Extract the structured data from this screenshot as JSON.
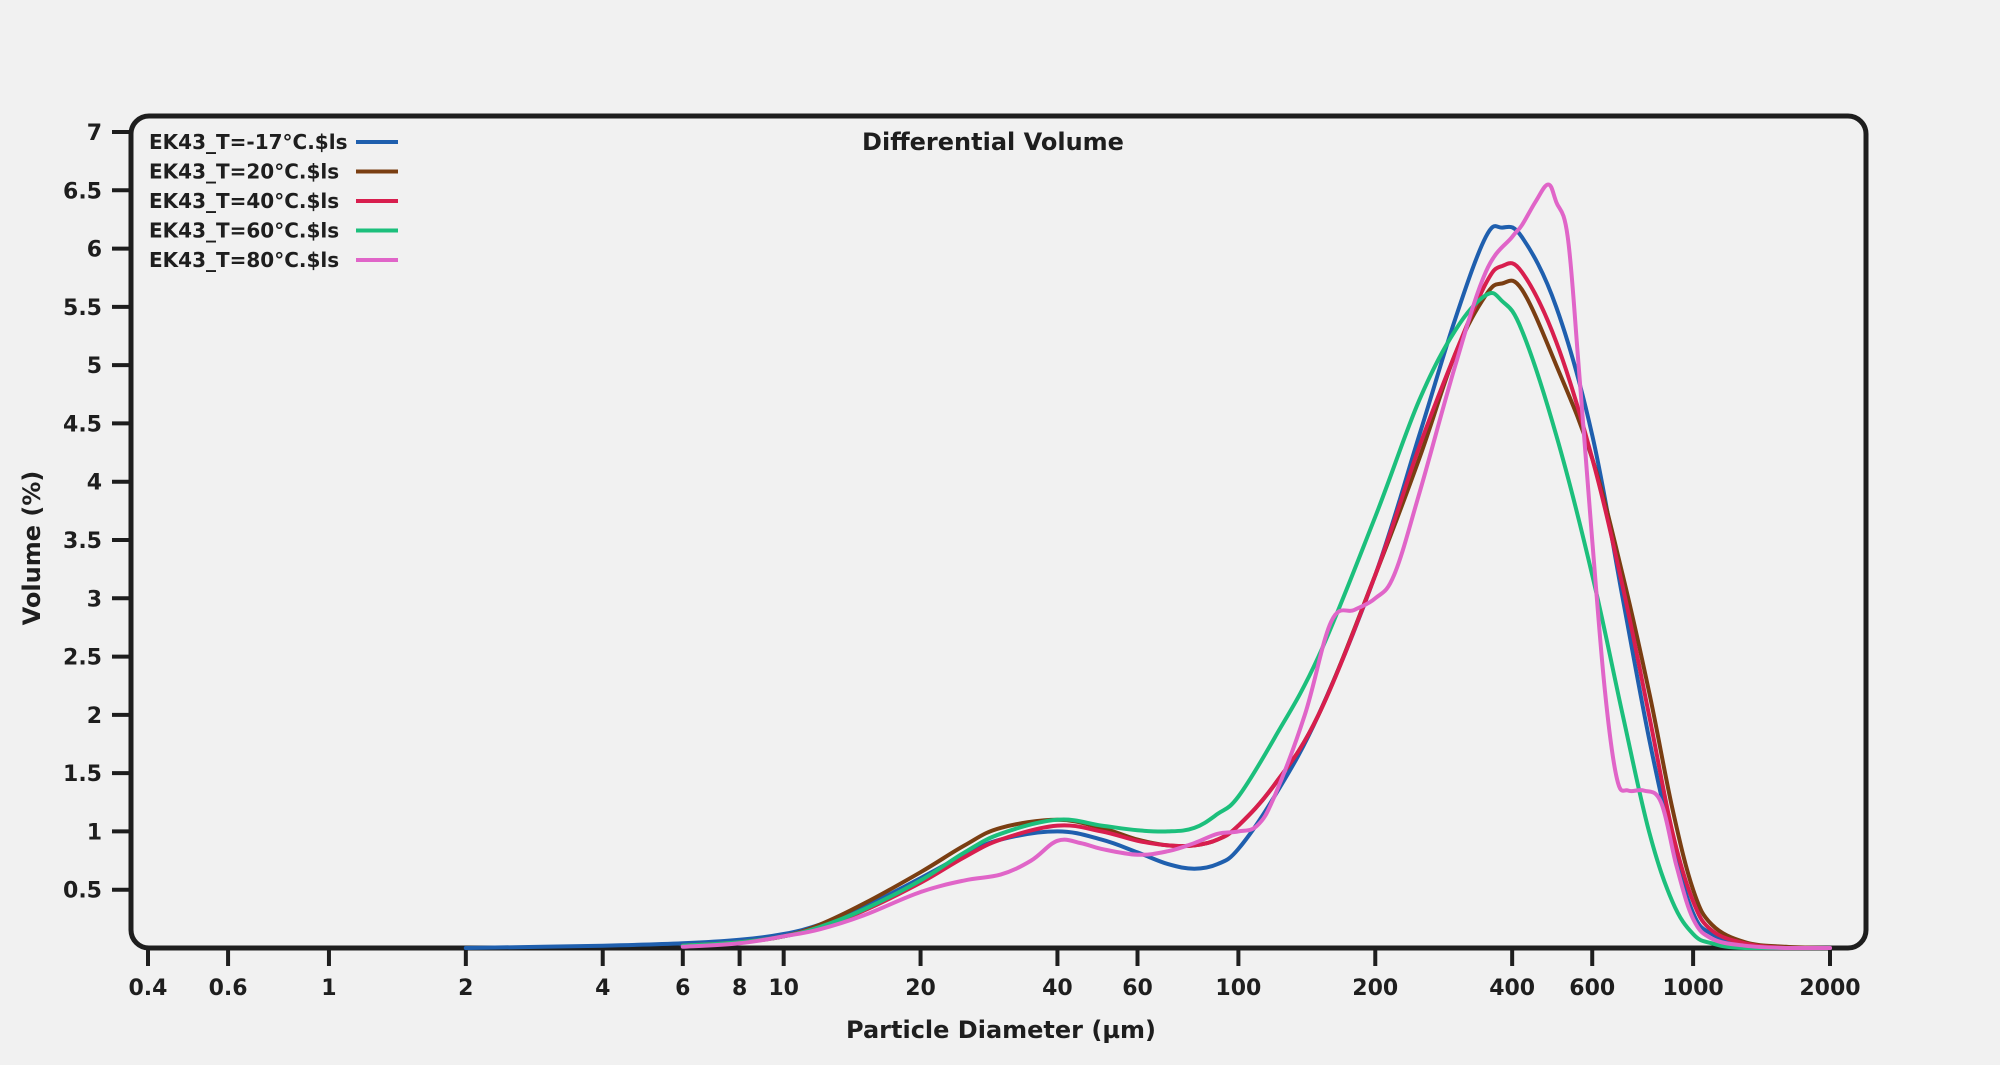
{
  "chart_data": {
    "type": "line",
    "title": "Differential Volume",
    "xlabel": "Particle Diameter (µm)",
    "ylabel": "Volume (%)",
    "xscale": "log",
    "xlim": [
      0.4,
      2000
    ],
    "ylim": [
      0,
      7
    ],
    "x_ticks": [
      0.4,
      0.6,
      1,
      2,
      4,
      6,
      8,
      10,
      20,
      40,
      60,
      100,
      200,
      400,
      600,
      1000,
      2000
    ],
    "x_tick_labels": [
      "0.4",
      "0.6",
      "1",
      "2",
      "4",
      "6",
      "8",
      "10",
      "20",
      "40",
      "60",
      "100",
      "200",
      "400",
      "600",
      "1000",
      "2000"
    ],
    "y_ticks": [
      0.5,
      1,
      1.5,
      2,
      2.5,
      3,
      3.5,
      4,
      4.5,
      5,
      5.5,
      6,
      6.5,
      7
    ],
    "y_tick_labels": [
      "0.5",
      "1",
      "1.5",
      "2",
      "2.5",
      "3",
      "3.5",
      "4",
      "4.5",
      "5",
      "5.5",
      "6",
      "6.5",
      "7"
    ],
    "grid": false,
    "legend": "top-left",
    "series": [
      {
        "name": "EK43_T=-17°C.$ls",
        "color": "#1f5fae",
        "points": [
          [
            2,
            0.0
          ],
          [
            4,
            0.02
          ],
          [
            6,
            0.04
          ],
          [
            8,
            0.07
          ],
          [
            10,
            0.12
          ],
          [
            12,
            0.2
          ],
          [
            15,
            0.35
          ],
          [
            20,
            0.6
          ],
          [
            25,
            0.8
          ],
          [
            30,
            0.93
          ],
          [
            40,
            1.0
          ],
          [
            50,
            0.93
          ],
          [
            60,
            0.82
          ],
          [
            70,
            0.72
          ],
          [
            80,
            0.68
          ],
          [
            90,
            0.72
          ],
          [
            100,
            0.85
          ],
          [
            120,
            1.3
          ],
          [
            150,
            2.0
          ],
          [
            200,
            3.2
          ],
          [
            250,
            4.4
          ],
          [
            300,
            5.4
          ],
          [
            350,
            6.1
          ],
          [
            380,
            6.18
          ],
          [
            420,
            6.1
          ],
          [
            500,
            5.5
          ],
          [
            600,
            4.4
          ],
          [
            700,
            3.0
          ],
          [
            800,
            1.8
          ],
          [
            900,
            0.9
          ],
          [
            1000,
            0.3
          ],
          [
            1100,
            0.12
          ],
          [
            1300,
            0.03
          ],
          [
            1600,
            0.0
          ],
          [
            2000,
            0.0
          ]
        ]
      },
      {
        "name": "EK43_T=20°C.$ls",
        "color": "#7a3e12",
        "points": [
          [
            6,
            0.02
          ],
          [
            8,
            0.05
          ],
          [
            10,
            0.1
          ],
          [
            12,
            0.2
          ],
          [
            15,
            0.38
          ],
          [
            20,
            0.65
          ],
          [
            25,
            0.88
          ],
          [
            30,
            1.03
          ],
          [
            40,
            1.1
          ],
          [
            50,
            1.03
          ],
          [
            60,
            0.93
          ],
          [
            70,
            0.88
          ],
          [
            80,
            0.88
          ],
          [
            90,
            0.93
          ],
          [
            100,
            1.05
          ],
          [
            120,
            1.4
          ],
          [
            150,
            2.0
          ],
          [
            200,
            3.2
          ],
          [
            250,
            4.2
          ],
          [
            300,
            5.1
          ],
          [
            350,
            5.6
          ],
          [
            380,
            5.7
          ],
          [
            420,
            5.65
          ],
          [
            500,
            5.0
          ],
          [
            600,
            4.2
          ],
          [
            700,
            3.2
          ],
          [
            800,
            2.2
          ],
          [
            900,
            1.2
          ],
          [
            1000,
            0.5
          ],
          [
            1100,
            0.2
          ],
          [
            1300,
            0.05
          ],
          [
            1600,
            0.01
          ],
          [
            2000,
            0.0
          ]
        ]
      },
      {
        "name": "EK43_T=40°C.$ls",
        "color": "#d81e4e",
        "points": [
          [
            6,
            0.02
          ],
          [
            8,
            0.05
          ],
          [
            10,
            0.1
          ],
          [
            12,
            0.18
          ],
          [
            15,
            0.32
          ],
          [
            20,
            0.56
          ],
          [
            25,
            0.78
          ],
          [
            30,
            0.93
          ],
          [
            40,
            1.05
          ],
          [
            50,
            1.0
          ],
          [
            60,
            0.92
          ],
          [
            70,
            0.88
          ],
          [
            80,
            0.88
          ],
          [
            90,
            0.93
          ],
          [
            100,
            1.05
          ],
          [
            120,
            1.4
          ],
          [
            150,
            2.0
          ],
          [
            200,
            3.2
          ],
          [
            250,
            4.3
          ],
          [
            300,
            5.1
          ],
          [
            350,
            5.7
          ],
          [
            380,
            5.85
          ],
          [
            420,
            5.8
          ],
          [
            500,
            5.2
          ],
          [
            600,
            4.2
          ],
          [
            700,
            3.1
          ],
          [
            800,
            2.0
          ],
          [
            900,
            1.0
          ],
          [
            1000,
            0.4
          ],
          [
            1100,
            0.15
          ],
          [
            1300,
            0.04
          ],
          [
            1600,
            0.0
          ],
          [
            2000,
            0.0
          ]
        ]
      },
      {
        "name": "EK43_T=60°C.$ls",
        "color": "#1cbf7c",
        "points": [
          [
            6,
            0.02
          ],
          [
            8,
            0.05
          ],
          [
            10,
            0.1
          ],
          [
            12,
            0.18
          ],
          [
            15,
            0.33
          ],
          [
            20,
            0.58
          ],
          [
            25,
            0.82
          ],
          [
            30,
            0.98
          ],
          [
            40,
            1.1
          ],
          [
            50,
            1.05
          ],
          [
            60,
            1.01
          ],
          [
            70,
            1.0
          ],
          [
            80,
            1.03
          ],
          [
            90,
            1.15
          ],
          [
            100,
            1.3
          ],
          [
            120,
            1.8
          ],
          [
            150,
            2.5
          ],
          [
            200,
            3.7
          ],
          [
            250,
            4.7
          ],
          [
            300,
            5.3
          ],
          [
            350,
            5.6
          ],
          [
            380,
            5.55
          ],
          [
            420,
            5.3
          ],
          [
            500,
            4.4
          ],
          [
            600,
            3.2
          ],
          [
            700,
            2.0
          ],
          [
            800,
            1.0
          ],
          [
            900,
            0.4
          ],
          [
            1000,
            0.12
          ],
          [
            1100,
            0.04
          ],
          [
            1300,
            0.0
          ],
          [
            2000,
            0.0
          ]
        ]
      },
      {
        "name": "EK43_T=80°C.$ls",
        "color": "#e065c8",
        "points": [
          [
            6,
            0.01
          ],
          [
            8,
            0.04
          ],
          [
            10,
            0.1
          ],
          [
            12,
            0.16
          ],
          [
            15,
            0.28
          ],
          [
            20,
            0.48
          ],
          [
            25,
            0.58
          ],
          [
            30,
            0.63
          ],
          [
            35,
            0.75
          ],
          [
            40,
            0.92
          ],
          [
            45,
            0.9
          ],
          [
            50,
            0.85
          ],
          [
            60,
            0.8
          ],
          [
            70,
            0.83
          ],
          [
            80,
            0.9
          ],
          [
            90,
            0.98
          ],
          [
            100,
            1.0
          ],
          [
            110,
            1.05
          ],
          [
            120,
            1.3
          ],
          [
            140,
            2.0
          ],
          [
            160,
            2.8
          ],
          [
            180,
            2.9
          ],
          [
            200,
            3.0
          ],
          [
            220,
            3.2
          ],
          [
            250,
            3.9
          ],
          [
            300,
            5.0
          ],
          [
            350,
            5.8
          ],
          [
            400,
            6.1
          ],
          [
            420,
            6.2
          ],
          [
            450,
            6.4
          ],
          [
            480,
            6.55
          ],
          [
            500,
            6.4
          ],
          [
            530,
            6.1
          ],
          [
            560,
            5.0
          ],
          [
            600,
            3.5
          ],
          [
            640,
            2.2
          ],
          [
            680,
            1.45
          ],
          [
            720,
            1.35
          ],
          [
            780,
            1.35
          ],
          [
            850,
            1.25
          ],
          [
            920,
            0.7
          ],
          [
            1000,
            0.25
          ],
          [
            1100,
            0.08
          ],
          [
            1300,
            0.02
          ],
          [
            1600,
            0.0
          ],
          [
            2000,
            0.0
          ]
        ]
      }
    ]
  }
}
